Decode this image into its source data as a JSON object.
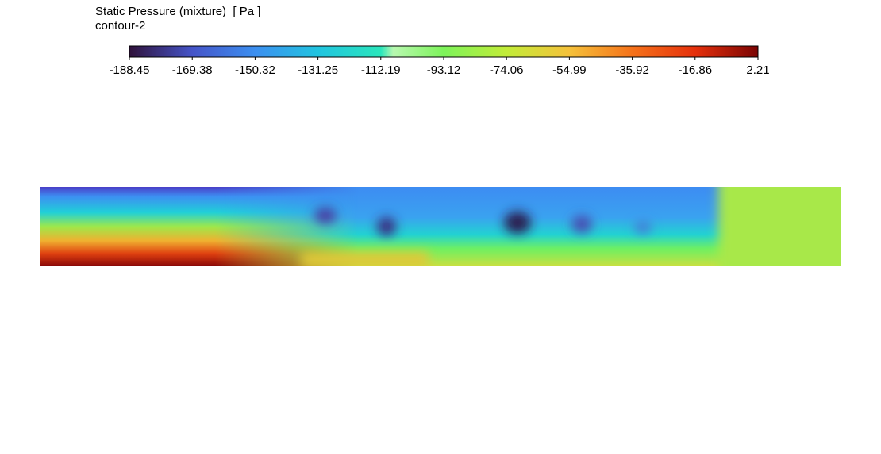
{
  "legend": {
    "title": "Static Pressure (mixture)  [ Pa ]",
    "subtitle": "contour-2",
    "range": [
      -188.45,
      2.21
    ],
    "ticks": [
      -188.45,
      -169.38,
      -150.32,
      -131.25,
      -112.19,
      -93.12,
      -74.06,
      -54.99,
      -35.92,
      -16.86,
      2.21
    ]
  }
}
